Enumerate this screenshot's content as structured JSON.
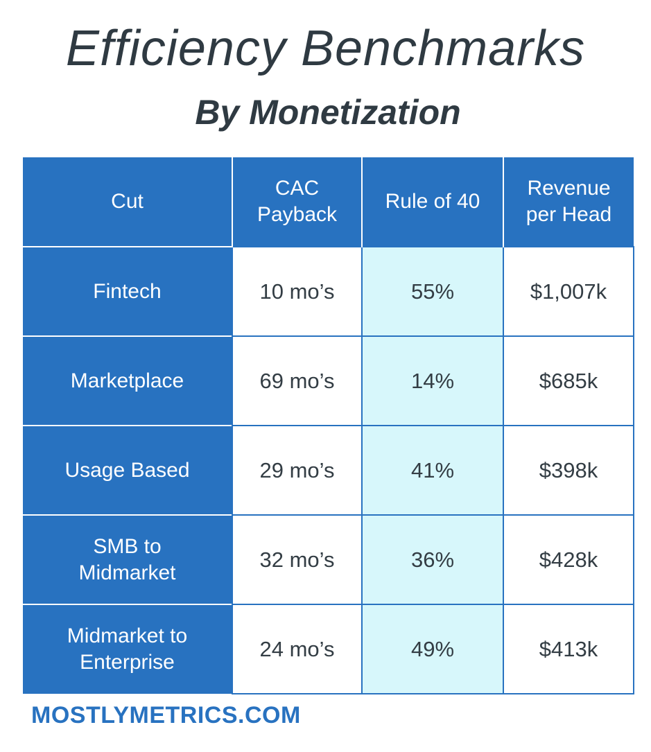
{
  "title": "Efficiency Benchmarks",
  "subtitle": "By Monetization",
  "table": {
    "headers": [
      "Cut",
      "CAC\nPayback",
      "Rule of 40",
      "Revenue\nper Head"
    ],
    "rows": [
      {
        "cut": "Fintech",
        "cac_payback": "10 mo’s",
        "rule_of_40": "55%",
        "revenue_per_head": "$1,007k"
      },
      {
        "cut": "Marketplace",
        "cac_payback": "69 mo’s",
        "rule_of_40": "14%",
        "revenue_per_head": "$685k"
      },
      {
        "cut": "Usage Based",
        "cac_payback": "29 mo’s",
        "rule_of_40": "41%",
        "revenue_per_head": "$398k"
      },
      {
        "cut": "SMB to\nMidmarket",
        "cac_payback": "32 mo’s",
        "rule_of_40": "36%",
        "revenue_per_head": "$428k"
      },
      {
        "cut": "Midmarket to\nEnterprise",
        "cac_payback": "24 mo’s",
        "rule_of_40": "49%",
        "revenue_per_head": "$413k"
      }
    ]
  },
  "footer": "MOSTLYMETRICS.COM",
  "colors": {
    "header_blue": "#2872c0",
    "highlight_column": "#d7f7fb",
    "text_dark": "#2f3a42"
  }
}
